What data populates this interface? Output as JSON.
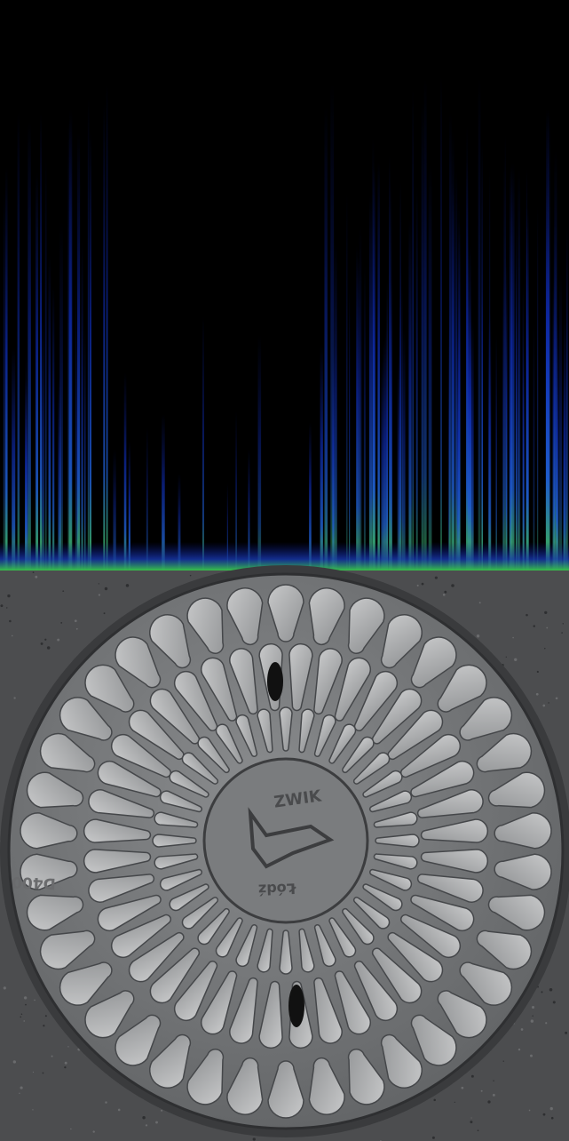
{
  "cover": {
    "brand": "ZWIK",
    "city": "Łódź",
    "load_class": "D400"
  }
}
